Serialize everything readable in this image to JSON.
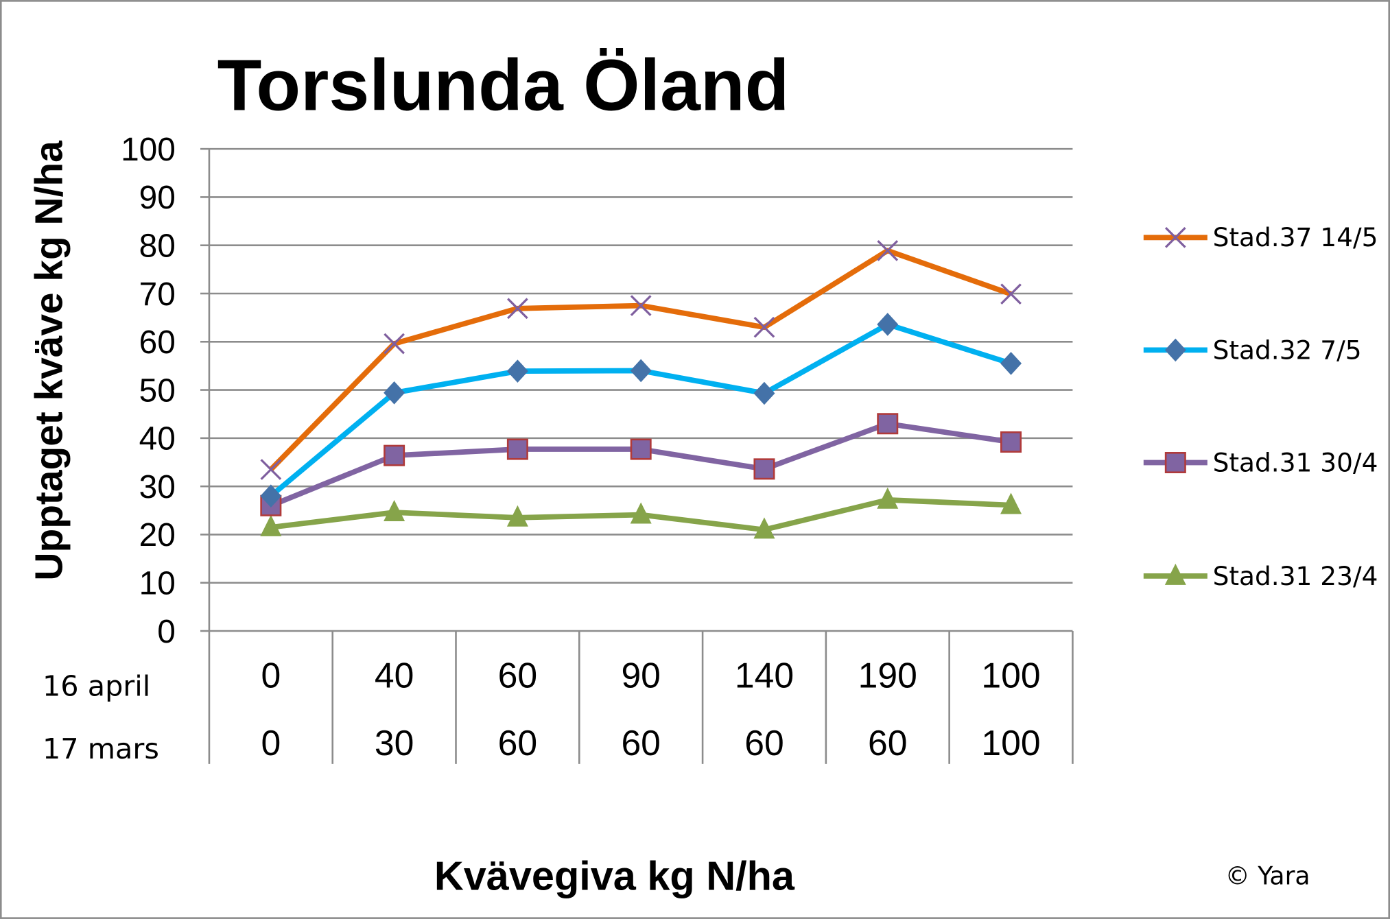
{
  "chart_data": {
    "type": "line",
    "title": "Torslunda Öland",
    "ylabel": "Upptaget kväve kg N/ha",
    "xlabel": "Kvävegiva kg N/ha",
    "ylim": [
      0,
      100
    ],
    "yticks": [
      0,
      10,
      20,
      30,
      40,
      50,
      60,
      70,
      80,
      90,
      100
    ],
    "grid": true,
    "legend_position": "right",
    "category_rows": [
      {
        "label": "16 april",
        "values": [
          "0",
          "40",
          "60",
          "90",
          "140",
          "190",
          "100"
        ]
      },
      {
        "label": "17 mars",
        "values": [
          "0",
          "30",
          "60",
          "60",
          "60",
          "60",
          "100"
        ]
      }
    ],
    "series": [
      {
        "name": "Stad.37 14/5",
        "color": "#E46C0A",
        "marker": "x",
        "marker_color": "#7F5F9F",
        "values": [
          33.5,
          59.6,
          66.9,
          67.5,
          63.0,
          78.9,
          69.9
        ]
      },
      {
        "name": "Stad.32 7/5",
        "color": "#00B0F0",
        "marker": "diamond",
        "marker_color": "#4472A8",
        "values": [
          28.0,
          49.4,
          53.9,
          54.0,
          49.3,
          63.6,
          55.5
        ]
      },
      {
        "name": "Stad.31 30/4",
        "color": "#8064A2",
        "marker": "square",
        "marker_color": "#8064A2",
        "marker_edge": "#B03A3A",
        "values": [
          26.0,
          36.4,
          37.7,
          37.7,
          33.6,
          43.0,
          39.2
        ]
      },
      {
        "name": "Stad.31 23/4",
        "color": "#86A44A",
        "marker": "triangle",
        "marker_color": "#86A44A",
        "values": [
          21.5,
          24.6,
          23.5,
          24.1,
          21.0,
          27.2,
          26.1
        ]
      }
    ],
    "copyright": "© Yara"
  }
}
